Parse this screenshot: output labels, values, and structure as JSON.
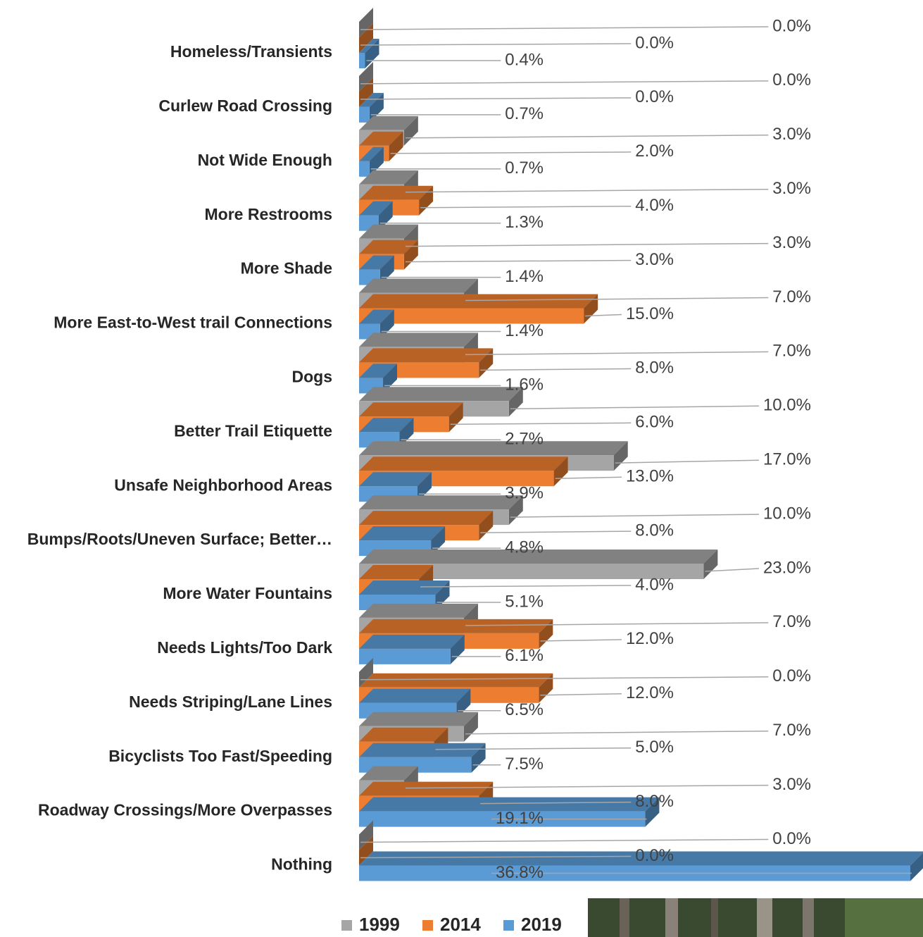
{
  "chart_data": {
    "type": "bar3d_horizontal",
    "categories": [
      "Homeless/Transients",
      "Curlew Road Crossing",
      "Not Wide Enough",
      "More Restrooms",
      "More Shade",
      "More East-to-West trail Connections",
      "Dogs",
      "Better Trail Etiquette",
      "Unsafe Neighborhood Areas",
      "Bumps/Roots/Uneven Surface; Better…",
      "More Water Fountains",
      "Needs Lights/Too Dark",
      "Needs Striping/Lane Lines",
      "Bicyclists Too Fast/Speeding",
      "Roadway Crossings/More Overpasses",
      "Nothing"
    ],
    "series": [
      {
        "name": "1999",
        "color": "#a5a5a5",
        "values": [
          0,
          0,
          3,
          3,
          3,
          7,
          7,
          10,
          17,
          10,
          23,
          7,
          0,
          7,
          3,
          0
        ],
        "value_labels": [
          "0.0%",
          "0.0%",
          "3.0%",
          "3.0%",
          "3.0%",
          "7.0%",
          "7.0%",
          "10.0%",
          "17.0%",
          "10.0%",
          "23.0%",
          "7.0%",
          "0.0%",
          "7.0%",
          "3.0%",
          "0.0%"
        ]
      },
      {
        "name": "2014",
        "color": "#ed7d31",
        "values": [
          0,
          0,
          2,
          4,
          3,
          15,
          8,
          6,
          13,
          8,
          4,
          12,
          12,
          5,
          8,
          0
        ],
        "value_labels": [
          "0.0%",
          "0.0%",
          "2.0%",
          "4.0%",
          "3.0%",
          "15.0%",
          "8.0%",
          "6.0%",
          "13.0%",
          "8.0%",
          "4.0%",
          "12.0%",
          "12.0%",
          "5.0%",
          "8.0%",
          "0.0%"
        ]
      },
      {
        "name": "2019",
        "color": "#5b9bd5",
        "values": [
          0.4,
          0.7,
          0.7,
          1.3,
          1.4,
          1.4,
          1.6,
          2.7,
          3.9,
          4.8,
          5.1,
          6.1,
          6.5,
          7.5,
          19.1,
          36.8
        ],
        "value_labels": [
          "0.4%",
          "0.7%",
          "0.7%",
          "1.3%",
          "1.4%",
          "1.4%",
          "1.6%",
          "2.7%",
          "3.9%",
          "4.8%",
          "5.1%",
          "6.1%",
          "6.5%",
          "7.5%",
          "19.1%",
          "36.8%"
        ]
      }
    ],
    "legend": "bottom"
  }
}
